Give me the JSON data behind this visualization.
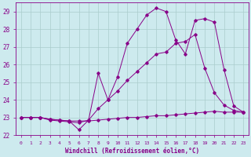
{
  "xlabel": "Windchill (Refroidissement éolien,°C)",
  "background_color": "#cdeaee",
  "grid_color": "#aacccc",
  "line_color": "#880088",
  "xlim": [
    -0.5,
    23.5
  ],
  "ylim": [
    22,
    29.5
  ],
  "yticks": [
    22,
    23,
    24,
    25,
    26,
    27,
    28,
    29
  ],
  "xticks": [
    0,
    1,
    2,
    3,
    4,
    5,
    6,
    7,
    8,
    9,
    10,
    11,
    12,
    13,
    14,
    15,
    16,
    17,
    18,
    19,
    20,
    21,
    22,
    23
  ],
  "line1_x": [
    0,
    1,
    2,
    3,
    4,
    5,
    6,
    7,
    8,
    9,
    10,
    11,
    12,
    13,
    14,
    15,
    16,
    17,
    18,
    19,
    20,
    21,
    22,
    23
  ],
  "line1_y": [
    23.0,
    23.0,
    23.0,
    22.9,
    22.85,
    22.8,
    22.8,
    22.8,
    22.85,
    22.9,
    22.95,
    23.0,
    23.0,
    23.05,
    23.1,
    23.1,
    23.15,
    23.2,
    23.25,
    23.3,
    23.35,
    23.3,
    23.3,
    23.3
  ],
  "line2_x": [
    0,
    1,
    2,
    3,
    4,
    5,
    6,
    7,
    8,
    9,
    10,
    11,
    12,
    13,
    14,
    15,
    16,
    17,
    18,
    19,
    20,
    21,
    22,
    23
  ],
  "line2_y": [
    23.0,
    23.0,
    23.0,
    22.85,
    22.8,
    22.75,
    22.7,
    22.85,
    23.5,
    24.0,
    24.5,
    25.1,
    25.6,
    26.1,
    26.6,
    26.7,
    27.2,
    27.3,
    27.7,
    25.8,
    24.4,
    23.7,
    23.4,
    23.3
  ],
  "line3_x": [
    0,
    1,
    2,
    3,
    4,
    5,
    6,
    7,
    8,
    9,
    10,
    11,
    12,
    13,
    14,
    15,
    16,
    17,
    18,
    19,
    20,
    21,
    22,
    23
  ],
  "line3_y": [
    23.0,
    23.0,
    23.0,
    22.9,
    22.85,
    22.8,
    22.3,
    22.85,
    25.5,
    24.0,
    25.3,
    27.2,
    28.0,
    28.8,
    29.2,
    29.0,
    27.4,
    26.6,
    28.5,
    28.6,
    28.4,
    25.7,
    23.65,
    23.3
  ]
}
